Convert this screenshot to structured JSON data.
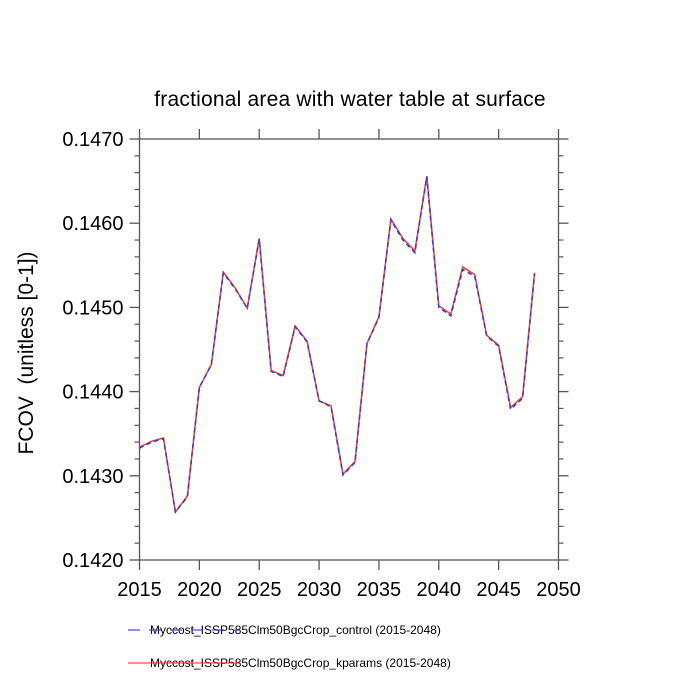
{
  "title": "fractional area with water table at surface",
  "accent_colors": {
    "control_blue": "#3c3ccf",
    "kparams_red": "#ef3b30",
    "axis_gray": "#565656"
  },
  "chart_data": {
    "type": "line",
    "title": "fractional area with water table at surface",
    "xlabel": "",
    "ylabel": "FCOV  (unitless [0-1])",
    "xlim": [
      2015,
      2050
    ],
    "ylim": [
      0.142,
      0.147
    ],
    "x_ticks": [
      2015,
      2020,
      2025,
      2030,
      2035,
      2040,
      2045,
      2050
    ],
    "y_ticks": [
      0.142,
      0.143,
      0.144,
      0.145,
      0.146,
      0.147
    ],
    "y_tick_labels": [
      "0.1420",
      "0.1430",
      "0.1440",
      "0.1450",
      "0.1460",
      "0.1470"
    ],
    "y_minor_step": 0.0002,
    "grid": false,
    "legend_position": "bottom",
    "x": [
      2015,
      2016,
      2017,
      2018,
      2019,
      2020,
      2021,
      2022,
      2023,
      2024,
      2025,
      2026,
      2027,
      2028,
      2029,
      2030,
      2031,
      2032,
      2033,
      2034,
      2035,
      2036,
      2037,
      2038,
      2039,
      2040,
      2041,
      2042,
      2043,
      2044,
      2045,
      2046,
      2047,
      2048
    ],
    "series": [
      {
        "name": "Myccost_ISSP585Clm50BgcCrop_control (2015-2048)",
        "color": "#3c3ccf",
        "style": "dashed",
        "values": [
          0.14333,
          0.1434,
          0.14344,
          0.14257,
          0.14275,
          0.14405,
          0.14432,
          0.14541,
          0.14522,
          0.14499,
          0.14581,
          0.14424,
          0.14418,
          0.14477,
          0.14459,
          0.14389,
          0.14382,
          0.14301,
          0.14316,
          0.14457,
          0.14488,
          0.14604,
          0.1458,
          0.14565,
          0.14655,
          0.145,
          0.1449,
          0.14545,
          0.14537,
          0.14466,
          0.14454,
          0.14379,
          0.14392,
          0.1454
        ]
      },
      {
        "name": "Myccost_ISSP585Clm50BgcCrop_kparams (2015-2048)",
        "color": "#ef3b30",
        "style": "solid",
        "values": [
          0.14334,
          0.14341,
          0.14345,
          0.14257,
          0.14276,
          0.14405,
          0.14432,
          0.14542,
          0.14523,
          0.14499,
          0.14582,
          0.14425,
          0.14419,
          0.14478,
          0.1446,
          0.14389,
          0.14383,
          0.14302,
          0.14317,
          0.14457,
          0.14489,
          0.14605,
          0.14582,
          0.14567,
          0.14656,
          0.14502,
          0.14492,
          0.14548,
          0.14539,
          0.14467,
          0.14455,
          0.14381,
          0.14394,
          0.14541
        ]
      }
    ]
  }
}
